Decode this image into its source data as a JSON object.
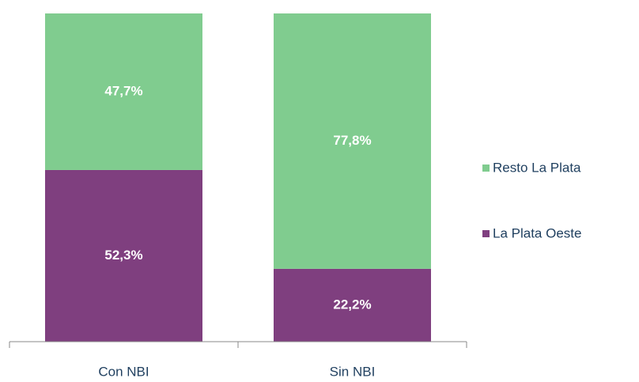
{
  "chart_data": {
    "type": "bar",
    "stacked": true,
    "categories": [
      "Con NBI",
      "Sin NBI"
    ],
    "series": [
      {
        "name": "La Plata Oeste",
        "color": "#7f3f7f",
        "values": [
          52.3,
          22.2
        ],
        "value_labels": [
          "52,3%",
          "22,2%"
        ]
      },
      {
        "name": "Resto La Plata",
        "color": "#80cc8f",
        "values": [
          47.7,
          77.8
        ],
        "value_labels": [
          "47,7%",
          "77,8%"
        ]
      }
    ],
    "ylim": [
      0,
      100
    ],
    "legend": "right"
  }
}
